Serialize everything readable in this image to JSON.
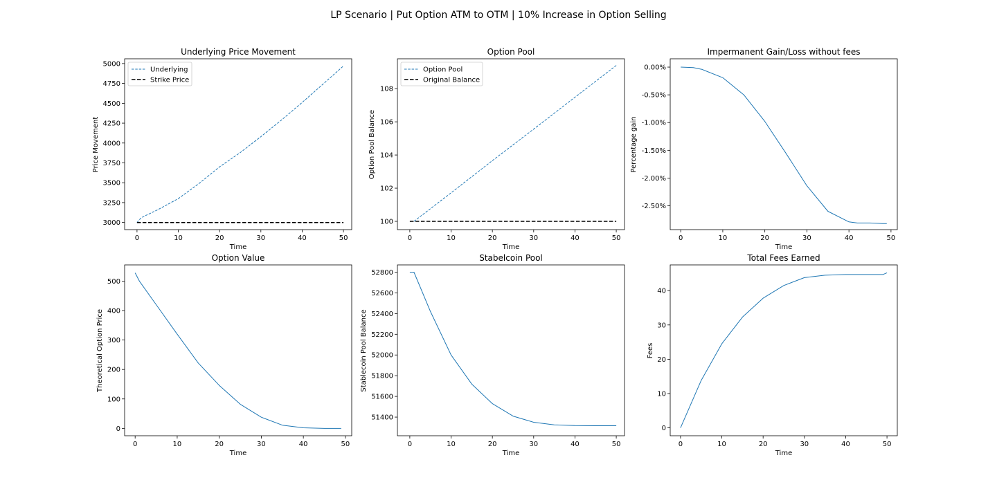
{
  "figure": {
    "title": "LP Scenario | Put Option ATM to OTM | 10% Increase in Option Selling"
  },
  "chart_data": [
    {
      "id": "underlying",
      "type": "line",
      "title": "Underlying Price Movement",
      "xlabel": "Time",
      "ylabel": "Price Movement",
      "xlim": [
        -3,
        52
      ],
      "ylim": [
        2910,
        5060
      ],
      "xticks": [
        0,
        10,
        20,
        30,
        40,
        50
      ],
      "yticks": [
        3000,
        3250,
        3500,
        3750,
        4000,
        4250,
        4500,
        4750,
        5000
      ],
      "ytick_labels": [
        "3000",
        "3250",
        "3500",
        "3750",
        "4000",
        "4250",
        "4500",
        "4750",
        "5000"
      ],
      "legend": {
        "position": "top-left",
        "entries": [
          "Underlying",
          "Strike Price"
        ]
      },
      "series": [
        {
          "name": "Underlying",
          "color": "#1f77b4",
          "style": "dashed-thin",
          "x": [
            0,
            1,
            5,
            10,
            15,
            20,
            25,
            30,
            35,
            40,
            45,
            50
          ],
          "y": [
            3000,
            3060,
            3160,
            3300,
            3490,
            3700,
            3880,
            4080,
            4290,
            4510,
            4740,
            4970
          ]
        },
        {
          "name": "Strike Price",
          "color": "#000000",
          "style": "dashed",
          "x": [
            0,
            50
          ],
          "y": [
            3000,
            3000
          ]
        }
      ]
    },
    {
      "id": "option-pool",
      "type": "line",
      "title": "Option Pool",
      "xlabel": "Time",
      "ylabel": "Option Pool Balance",
      "xlim": [
        -3,
        52
      ],
      "ylim": [
        99.5,
        109.8
      ],
      "xticks": [
        0,
        10,
        20,
        30,
        40,
        50
      ],
      "yticks": [
        100,
        102,
        104,
        106,
        108
      ],
      "ytick_labels": [
        "100",
        "102",
        "104",
        "106",
        "108"
      ],
      "legend": {
        "position": "top-left",
        "entries": [
          "Option Pool",
          "Original Balance"
        ]
      },
      "series": [
        {
          "name": "Option Pool",
          "color": "#1f77b4",
          "style": "dashed-thin",
          "x": [
            1,
            10,
            20,
            30,
            40,
            50
          ],
          "y": [
            100,
            101.72,
            103.66,
            105.56,
            107.48,
            109.4
          ]
        },
        {
          "name": "Original Balance",
          "color": "#000000",
          "style": "dashed",
          "x": [
            0,
            50
          ],
          "y": [
            100,
            100
          ]
        }
      ]
    },
    {
      "id": "impermanent",
      "type": "line",
      "title": "Impermanent Gain/Loss without fees",
      "xlabel": "Time",
      "ylabel": "Percentage gain",
      "xlim": [
        -2.5,
        51.5
      ],
      "ylim": [
        -2.93,
        0.15
      ],
      "xticks": [
        0,
        10,
        20,
        30,
        40,
        50
      ],
      "yticks": [
        0,
        -0.5,
        -1.0,
        -1.5,
        -2.0,
        -2.5
      ],
      "ytick_labels": [
        "0.00%",
        "-0.50%",
        "-1.00%",
        "-1.50%",
        "-2.00%",
        "-2.50%"
      ],
      "series": [
        {
          "color": "#1f77b4",
          "style": "solid",
          "x": [
            0,
            3,
            5,
            10,
            15,
            20,
            25,
            30,
            35,
            40,
            42,
            45,
            48,
            49
          ],
          "y": [
            0,
            -0.01,
            -0.04,
            -0.19,
            -0.5,
            -0.98,
            -1.55,
            -2.14,
            -2.6,
            -2.79,
            -2.81,
            -2.81,
            -2.82,
            -2.82
          ]
        }
      ]
    },
    {
      "id": "option-value",
      "type": "line",
      "title": "Option Value",
      "xlabel": "Time",
      "ylabel": "Theoretical Option Price",
      "xlim": [
        -2.5,
        51.5
      ],
      "ylim": [
        -25,
        555
      ],
      "xticks": [
        0,
        10,
        20,
        30,
        40,
        50
      ],
      "yticks": [
        0,
        100,
        200,
        300,
        400,
        500
      ],
      "ytick_labels": [
        "0",
        "100",
        "200",
        "300",
        "400",
        "500"
      ],
      "series": [
        {
          "color": "#1f77b4",
          "style": "solid",
          "x": [
            0,
            1,
            5,
            10,
            15,
            20,
            25,
            30,
            35,
            40,
            45,
            49
          ],
          "y": [
            528,
            500,
            420,
            320,
            222,
            146,
            82,
            38,
            11,
            2,
            0,
            0
          ]
        }
      ]
    },
    {
      "id": "stablecoin-pool",
      "type": "line",
      "title": "Stabelcoin Pool",
      "xlabel": "Time",
      "ylabel": "Stablecoin Pool Balance",
      "xlim": [
        -3,
        52
      ],
      "ylim": [
        51220,
        52870
      ],
      "xticks": [
        0,
        10,
        20,
        30,
        40,
        50
      ],
      "yticks": [
        51400,
        51600,
        51800,
        52000,
        52200,
        52400,
        52600,
        52800
      ],
      "ytick_labels": [
        "51400",
        "51600",
        "51800",
        "52000",
        "52200",
        "52400",
        "52600",
        "52800"
      ],
      "series": [
        {
          "color": "#1f77b4",
          "style": "solid",
          "x": [
            0,
            1,
            5,
            10,
            15,
            20,
            25,
            30,
            35,
            40,
            45,
            50
          ],
          "y": [
            52800,
            52800,
            52420,
            52000,
            51720,
            51530,
            51410,
            51350,
            51325,
            51318,
            51317,
            51317
          ]
        }
      ]
    },
    {
      "id": "fees",
      "type": "line",
      "title": "Total Fees Earned",
      "xlabel": "Time",
      "ylabel": "Fees",
      "xlim": [
        -2.5,
        52.5
      ],
      "ylim": [
        -2.3,
        47.5
      ],
      "xticks": [
        0,
        10,
        20,
        30,
        40,
        50
      ],
      "yticks": [
        0,
        10,
        20,
        30,
        40
      ],
      "ytick_labels": [
        "0",
        "10",
        "20",
        "30",
        "40"
      ],
      "series": [
        {
          "color": "#1f77b4",
          "style": "solid",
          "x": [
            0,
            5,
            10,
            15,
            20,
            25,
            30,
            35,
            40,
            45,
            49,
            50
          ],
          "y": [
            0,
            13.8,
            24.5,
            32.3,
            37.8,
            41.5,
            43.8,
            44.5,
            44.7,
            44.7,
            44.7,
            45.2
          ]
        }
      ]
    }
  ]
}
